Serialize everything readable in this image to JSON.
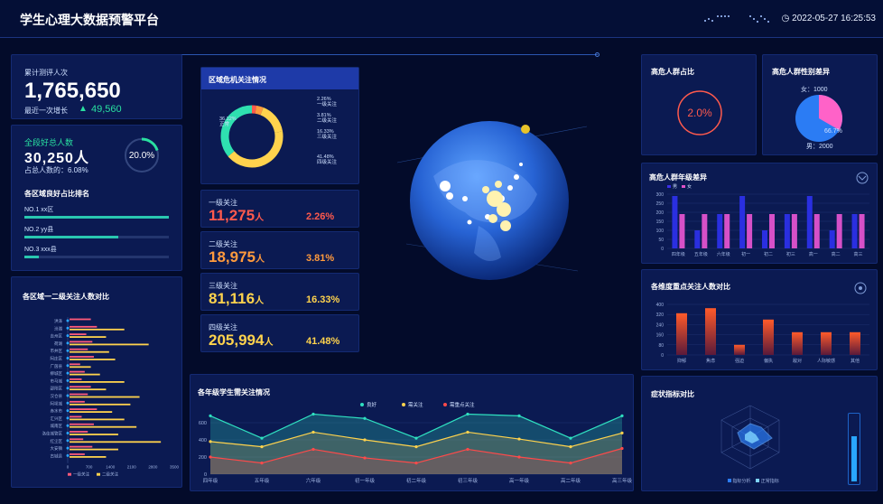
{
  "header": {
    "title": "学生心理大数据预警平台",
    "datetime": "2022-05-27 16:25:53"
  },
  "total": {
    "label": "累计测评人次",
    "value": "1,765,650",
    "growth_label": "最近一次增长",
    "growth_value": "49,560"
  },
  "good": {
    "label": "全段好总人数",
    "value": "30,250人",
    "ratio_label": "占总人数的：6.08%",
    "gauge_text": "20.0%",
    "gauge": 0.2
  },
  "ranking": {
    "title": "各区域良好占比排名",
    "items": [
      {
        "label": "NO.1  xx区",
        "frac": 1.0
      },
      {
        "label": "NO.2  yy县",
        "frac": 0.65
      },
      {
        "label": "NO.3  xxx县",
        "frac": 0.1
      }
    ]
  },
  "area_chart": {
    "title": "各区域一二级关注人数对比",
    "legend": [
      "一级关注",
      "二级关注"
    ]
  },
  "crisis": {
    "title": "区域危机关注情况",
    "labels": [
      {
        "pct": "2.26%",
        "name": "一级关注"
      },
      {
        "pct": "3.81%",
        "name": "二级关注"
      },
      {
        "pct": "16.33%",
        "name": "三级关注"
      },
      {
        "pct": "41.48%",
        "name": "四级关注"
      },
      {
        "pct": "36.12%",
        "name": "正常"
      }
    ]
  },
  "levels": [
    {
      "name": "一级关注",
      "count": "11,275",
      "unit": "人",
      "pct": "2.26%",
      "color": "#ff5a4d"
    },
    {
      "name": "二级关注",
      "count": "18,975",
      "unit": "人",
      "pct": "3.81%",
      "color": "#ff9a3d"
    },
    {
      "name": "三级关注",
      "count": "81,116",
      "unit": "人",
      "pct": "16.33%",
      "color": "#ffd34d"
    },
    {
      "name": "四级关注",
      "count": "205,994",
      "unit": "人",
      "pct": "41.48%",
      "color": "#ffd34d"
    }
  ],
  "high_risk": {
    "title": "高危人群占比",
    "value": "2.0%"
  },
  "gender": {
    "title": "高危人群性别差异",
    "female": "女：1000",
    "male": "男：2000",
    "center": "66.7%"
  },
  "grade_diff": {
    "title": "高危人群年级差异",
    "legend": [
      "男",
      "女"
    ]
  },
  "dimension": {
    "title": "各维度重点关注人数对比"
  },
  "symptom": {
    "title": "症状指标对比",
    "legend": [
      "指标分析",
      "正常指标"
    ]
  },
  "trend": {
    "title": "各年级学生需关注情况",
    "legend": [
      "良好",
      "需关注",
      "需重点关注"
    ]
  },
  "chart_data": [
    {
      "type": "bar",
      "title": "高危人群年级差异",
      "categories": [
        "四年级",
        "五年级",
        "六年级",
        "初一",
        "初二",
        "初三",
        "高一",
        "高二",
        "高三"
      ],
      "series": [
        {
          "name": "男",
          "values": [
            290,
            100,
            190,
            290,
            100,
            190,
            290,
            100,
            190
          ]
        },
        {
          "name": "女",
          "values": [
            190,
            190,
            190,
            190,
            190,
            190,
            190,
            190,
            190
          ]
        }
      ],
      "ylim": [
        0,
        300
      ],
      "yticks": [
        0,
        50,
        100,
        150,
        200,
        250,
        300
      ]
    },
    {
      "type": "bar",
      "title": "各维度重点关注人数对比",
      "categories": [
        "抑郁",
        "焦虑",
        "强迫",
        "偏执",
        "敌对",
        "人际敏感",
        "其他"
      ],
      "values": [
        330,
        370,
        80,
        280,
        180,
        180,
        180
      ],
      "ylim": [
        0,
        400
      ],
      "yticks": [
        0,
        80,
        160,
        240,
        320,
        400
      ]
    },
    {
      "type": "line",
      "title": "各年级学生需关注情况",
      "categories": [
        "四年级",
        "五年级",
        "六年级",
        "初一年级",
        "初二年级",
        "初三年级",
        "高一年级",
        "高二年级",
        "高三年级"
      ],
      "series": [
        {
          "name": "良好",
          "values": [
            680,
            420,
            700,
            650,
            420,
            700,
            680,
            420,
            680
          ]
        },
        {
          "name": "需关注",
          "values": [
            380,
            320,
            490,
            400,
            320,
            490,
            410,
            320,
            480
          ]
        },
        {
          "name": "需重点关注",
          "values": [
            200,
            130,
            290,
            190,
            130,
            290,
            200,
            130,
            300
          ]
        }
      ],
      "ylim": [
        0,
        800
      ],
      "yticks": [
        0,
        200,
        400,
        600
      ]
    },
    {
      "type": "bar",
      "title": "各区域一二级关注人数对比",
      "categories": [
        "洪泽",
        "汾湖",
        "吉州区",
        "荷湖",
        "市井区",
        "阿庄区",
        "广茵县",
        "柳城区",
        "市马城",
        "邵阳区",
        "汉仓县",
        "阿坝城",
        "赤水市",
        "汇兴区",
        "城南区",
        "洛佳城管区",
        "红尘区",
        "大安镇",
        "古城县"
      ],
      "series": [
        {
          "name": "一级关注",
          "values": [
            700,
            900,
            550,
            750,
            600,
            800,
            350,
            500,
            400,
            700,
            600,
            500,
            900,
            400,
            800,
            600,
            450,
            750,
            500
          ]
        },
        {
          "name": "二级关注",
          "values": [
            0,
            1800,
            1200,
            2600,
            1300,
            1500,
            700,
            1000,
            1800,
            1200,
            2300,
            2000,
            1400,
            1800,
            2200,
            1600,
            3000,
            1600,
            1200
          ]
        }
      ],
      "xlim": [
        0,
        3500
      ],
      "xticks": [
        0,
        700,
        1400,
        2100,
        2800,
        3500
      ]
    }
  ]
}
